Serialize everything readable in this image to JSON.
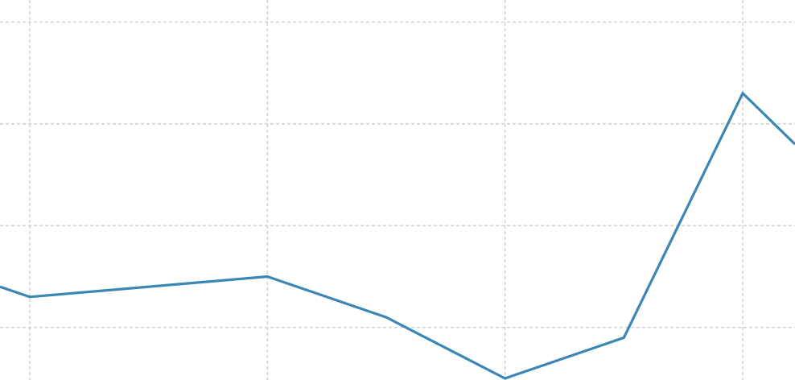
{
  "chart_data": {
    "type": "line",
    "title": "",
    "xlabel": "",
    "ylabel": "",
    "grid": true,
    "legend": "none",
    "x": [
      -0.125,
      0,
      1,
      1.5,
      2,
      2.5,
      3,
      3.22
    ],
    "series": [
      {
        "values": [
          2.4,
          2.3,
          2.5,
          2.1,
          1.5,
          1.9,
          4.3,
          3.8
        ],
        "color": "#3a86b4"
      }
    ],
    "xgrid": [
      0,
      1,
      2,
      3
    ],
    "ygrid": [
      2,
      3,
      4,
      5
    ],
    "xlim": [
      -0.125,
      3.22
    ],
    "ylim": [
      1.5,
      5.2
    ]
  }
}
